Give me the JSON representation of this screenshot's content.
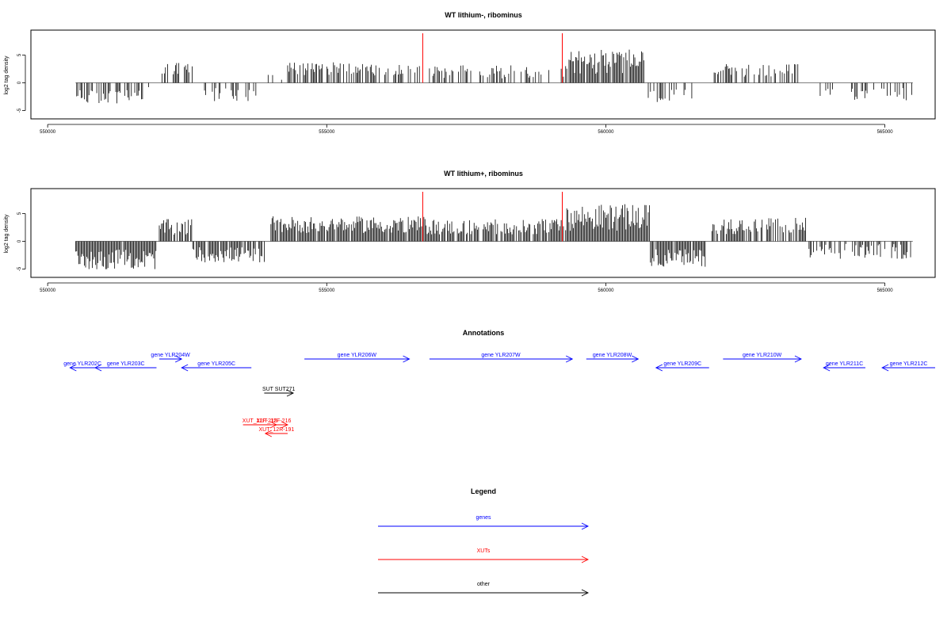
{
  "chart_data": [
    {
      "type": "bar",
      "title": "WT lithium-, ribominus",
      "ylabel": "log2 tag density",
      "xlabel": "",
      "xlim": [
        549700,
        565900
      ],
      "ylim": [
        -6.5,
        9.5
      ],
      "x_ticks": [
        {
          "value": 550000,
          "label": "550000"
        },
        {
          "value": 555000,
          "label": "555000"
        },
        {
          "value": 560000,
          "label": "560000"
        },
        {
          "value": 565000,
          "label": "565000"
        }
      ],
      "y_ticks": [
        {
          "value": -5,
          "label": "-5"
        },
        {
          "value": 0,
          "label": "0"
        },
        {
          "value": 5,
          "label": "5"
        }
      ],
      "segments": [
        {
          "start": 550500,
          "end": 551750,
          "mean": -2.6,
          "amp": 1.3,
          "density": 0.6
        },
        {
          "start": 551750,
          "end": 551950,
          "mean": -0.6,
          "amp": 0.6,
          "density": 0.2
        },
        {
          "start": 552050,
          "end": 552650,
          "mean": 2.4,
          "amp": 1.2,
          "density": 0.45
        },
        {
          "start": 552650,
          "end": 553750,
          "mean": -2.0,
          "amp": 1.3,
          "density": 0.3
        },
        {
          "start": 553950,
          "end": 554300,
          "mean": 1.2,
          "amp": 0.8,
          "density": 0.1
        },
        {
          "start": 554300,
          "end": 555800,
          "mean": 2.6,
          "amp": 1.2,
          "density": 0.55
        },
        {
          "start": 555800,
          "end": 556800,
          "mean": 2.3,
          "amp": 1.0,
          "density": 0.35
        },
        {
          "start": 556800,
          "end": 559300,
          "mean": 2.0,
          "amp": 1.2,
          "density": 0.45
        },
        {
          "start": 559300,
          "end": 560700,
          "mean": 3.8,
          "amp": 2.2,
          "density": 0.95
        },
        {
          "start": 560700,
          "end": 561600,
          "mean": -2.5,
          "amp": 1.3,
          "density": 0.4
        },
        {
          "start": 561900,
          "end": 563500,
          "mean": 2.2,
          "amp": 1.2,
          "density": 0.45
        },
        {
          "start": 563600,
          "end": 564300,
          "mean": -1.6,
          "amp": 0.8,
          "density": 0.12
        },
        {
          "start": 564400,
          "end": 565500,
          "mean": -2.0,
          "amp": 1.2,
          "density": 0.4
        }
      ],
      "markers": [
        556720,
        559220
      ]
    },
    {
      "type": "bar",
      "title": "WT lithium+, ribominus",
      "ylabel": "log2 tag density",
      "xlabel": "",
      "xlim": [
        549700,
        565900
      ],
      "ylim": [
        -6.5,
        9.5
      ],
      "x_ticks": [
        {
          "value": 550000,
          "label": "550000"
        },
        {
          "value": 555000,
          "label": "555000"
        },
        {
          "value": 560000,
          "label": "560000"
        },
        {
          "value": 565000,
          "label": "565000"
        }
      ],
      "y_ticks": [
        {
          "value": -5,
          "label": "-5"
        },
        {
          "value": 0,
          "label": "0"
        },
        {
          "value": 5,
          "label": "5"
        }
      ],
      "segments": [
        {
          "start": 550500,
          "end": 551950,
          "mean": -3.3,
          "amp": 1.8,
          "density": 0.95
        },
        {
          "start": 552000,
          "end": 552600,
          "mean": 2.6,
          "amp": 1.4,
          "density": 0.8
        },
        {
          "start": 552600,
          "end": 553900,
          "mean": -2.4,
          "amp": 1.4,
          "density": 0.9
        },
        {
          "start": 554000,
          "end": 556800,
          "mean": 3.0,
          "amp": 1.5,
          "density": 0.95
        },
        {
          "start": 556800,
          "end": 559300,
          "mean": 2.6,
          "amp": 1.4,
          "density": 0.85
        },
        {
          "start": 559300,
          "end": 560800,
          "mean": 4.3,
          "amp": 2.4,
          "density": 1.0
        },
        {
          "start": 560800,
          "end": 561800,
          "mean": -3.0,
          "amp": 1.6,
          "density": 0.95
        },
        {
          "start": 561900,
          "end": 563600,
          "mean": 2.8,
          "amp": 1.5,
          "density": 0.8
        },
        {
          "start": 563600,
          "end": 565500,
          "mean": -1.8,
          "amp": 1.4,
          "density": 0.6
        }
      ],
      "markers": [
        556720,
        559220
      ]
    }
  ],
  "annotations": {
    "title": "Annotations",
    "items": [
      {
        "label": "gene YLR202C",
        "start": 550400,
        "end": 550850,
        "strand": "-",
        "row": 1,
        "kind": "genes"
      },
      {
        "label": "gene YLR203C",
        "start": 550850,
        "end": 551950,
        "strand": "-",
        "row": 1,
        "kind": "genes"
      },
      {
        "label": "gene YLR204W",
        "start": 552000,
        "end": 552400,
        "strand": "+",
        "row": 0,
        "kind": "genes"
      },
      {
        "label": "gene YLR205C",
        "start": 552400,
        "end": 553650,
        "strand": "-",
        "row": 1,
        "kind": "genes"
      },
      {
        "label": "gene YLR206W",
        "start": 554600,
        "end": 556480,
        "strand": "+",
        "row": 0,
        "kind": "genes"
      },
      {
        "label": "gene YLR207W",
        "start": 556840,
        "end": 559400,
        "strand": "+",
        "row": 0,
        "kind": "genes"
      },
      {
        "label": "gene YLR208W",
        "start": 559650,
        "end": 560580,
        "strand": "+",
        "row": 0,
        "kind": "genes"
      },
      {
        "label": "gene YLR209C",
        "start": 560900,
        "end": 561850,
        "strand": "-",
        "row": 1,
        "kind": "genes"
      },
      {
        "label": "gene YLR210W",
        "start": 562100,
        "end": 563500,
        "strand": "+",
        "row": 0,
        "kind": "genes"
      },
      {
        "label": "gene YLR211C",
        "start": 563900,
        "end": 564650,
        "strand": "-",
        "row": 1,
        "kind": "genes"
      },
      {
        "label": "gene YLR212C",
        "start": 564950,
        "end": 565900,
        "strand": "-",
        "row": 1,
        "kind": "genes"
      },
      {
        "label": "SUT SUT271",
        "start": 553880,
        "end": 554400,
        "strand": "+",
        "row": 2,
        "kind": "other"
      },
      {
        "label": "XUT_12F-215",
        "start": 553500,
        "end": 554100,
        "strand": "+",
        "row": 3,
        "kind": "XUTs"
      },
      {
        "label": "XUT_12F-216",
        "start": 553800,
        "end": 554300,
        "strand": "+",
        "row": 3,
        "kind": "XUTs"
      },
      {
        "label": "XUT_12R-191",
        "start": 553900,
        "end": 554300,
        "strand": "-",
        "row": 4,
        "kind": "XUTs"
      }
    ]
  },
  "legend": {
    "title": "Legend",
    "entries": [
      {
        "label": "genes",
        "color": "#0000ff"
      },
      {
        "label": "XUTs",
        "color": "#ff0000"
      },
      {
        "label": "other",
        "color": "#000000"
      }
    ]
  },
  "colors": {
    "genes": "#0000ff",
    "XUTs": "#ff0000",
    "other": "#000000",
    "marker": "#ff0000",
    "bars": "#000000"
  }
}
